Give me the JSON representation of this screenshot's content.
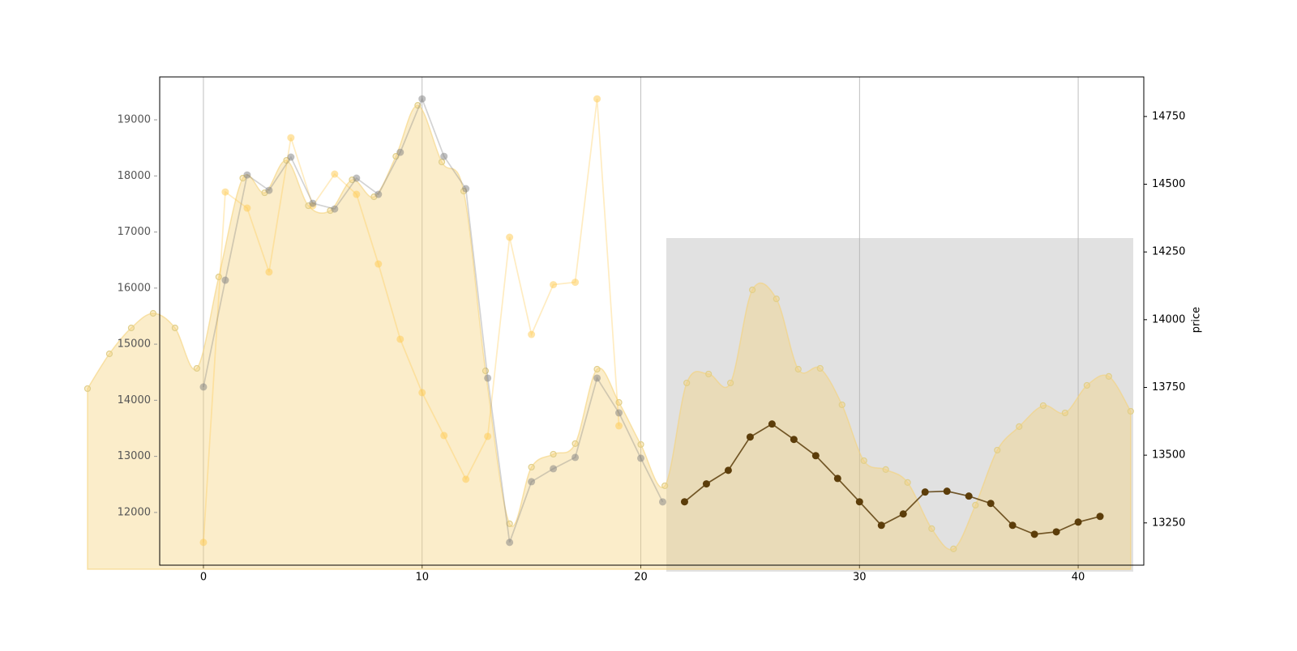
{
  "chart_data": {
    "type": "line",
    "xlim": [
      -2,
      43
    ],
    "xticks": [
      0,
      10,
      20,
      30,
      40
    ],
    "xgrid": true,
    "ylim": [
      11060,
      19765
    ],
    "yticks": [
      12000,
      13000,
      14000,
      15000,
      16000,
      17000,
      18000,
      19000
    ],
    "y2lim": [
      13094,
      14896
    ],
    "y2ticks": [
      13250,
      13500,
      13750,
      14000,
      14250,
      14500,
      14750
    ],
    "y2label": "price",
    "series": [
      {
        "fill": true,
        "color": "#f5d27a",
        "axis": "y",
        "x": [
          -5.3,
          -4.3,
          -3.3,
          -2.3,
          -1.3,
          -0.3,
          0.7,
          1.8,
          2.8,
          3.8,
          4.8,
          5.8,
          6.8,
          7.8,
          8.8,
          9.8,
          10.9,
          11.9,
          12.9,
          14.0,
          15.0,
          16.0,
          17.0,
          18.0,
          19.0,
          20.0,
          21.1,
          22.1,
          23.1,
          24.1,
          25.1,
          26.2,
          27.2,
          28.2,
          29.2,
          30.2,
          31.2,
          32.2,
          33.3,
          34.3,
          35.3,
          36.3,
          37.3,
          38.4,
          39.4,
          40.4,
          41.4,
          42.4
        ],
        "values": [
          14208,
          14828,
          15290,
          15550,
          15290,
          14569,
          16199,
          17960,
          17700,
          18277,
          17469,
          17382,
          17931,
          17628,
          18349,
          19258,
          18248,
          17729,
          14525,
          11798,
          12808,
          13039,
          13227,
          14554,
          13962,
          13212,
          12476,
          14309,
          14468,
          14309,
          15968,
          15808,
          14554,
          14569,
          13919,
          12923,
          12765,
          12534,
          11711,
          11350,
          12130,
          13111,
          13530,
          13905,
          13775,
          14266,
          14425,
          13804
        ]
      },
      {
        "color": "#ffc94d",
        "axis": "y",
        "x": [
          0,
          1,
          2,
          3,
          4,
          5,
          6,
          7,
          8,
          9,
          10,
          11,
          12,
          13,
          14,
          15,
          16,
          17,
          18,
          19
        ],
        "values": [
          11466,
          17714,
          17426,
          16286,
          18681,
          17469,
          18032,
          17671,
          16430,
          15088,
          14136,
          13371,
          12592,
          13356,
          16906,
          15174,
          16061,
          16104,
          19374,
          13544
        ]
      },
      {
        "color": "#808080",
        "axis": "y",
        "x": [
          0,
          1,
          2,
          3,
          4,
          5,
          6,
          7,
          8,
          9,
          10,
          11,
          12,
          13,
          14,
          15,
          16,
          17,
          18,
          19,
          20,
          21
        ],
        "values": [
          14237,
          16141,
          18017,
          17743,
          18335,
          17512,
          17411,
          17960,
          17671,
          18421,
          19374,
          18349,
          17772,
          14395,
          11466,
          12548,
          12779,
          12981,
          14395,
          13775,
          12967,
          12188
        ]
      },
      {
        "color": "#5c3d0a",
        "axis": "y2",
        "x": [
          22,
          23,
          24,
          25,
          26,
          27,
          28,
          29,
          30,
          31,
          32,
          33,
          34,
          35,
          36,
          37,
          38,
          39,
          40,
          41
        ],
        "values": [
          13328,
          13394,
          13444,
          13567,
          13615,
          13558,
          13498,
          13414,
          13328,
          13241,
          13283,
          13364,
          13367,
          13349,
          13322,
          13241,
          13208,
          13217,
          13253,
          13274
        ]
      }
    ]
  }
}
